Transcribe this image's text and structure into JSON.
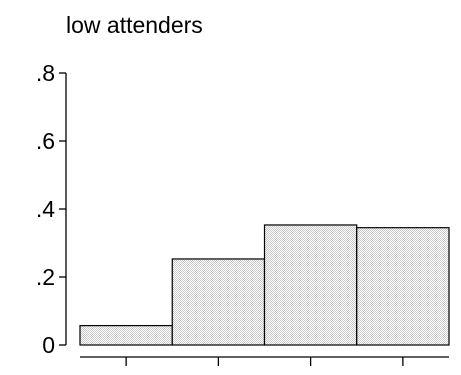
{
  "chart_data": {
    "type": "bar",
    "title": "low attenders",
    "xlabel": "",
    "ylabel": "",
    "categories": [
      "",
      "",
      "",
      ""
    ],
    "values": [
      0.057,
      0.253,
      0.353,
      0.345
    ],
    "ylim": [
      0,
      0.8
    ],
    "yticks": [
      {
        "value": 0,
        "label": "0"
      },
      {
        "value": 0.2,
        "label": ".2"
      },
      {
        "value": 0.4,
        "label": ".4"
      },
      {
        "value": 0.6,
        "label": ".6"
      },
      {
        "value": 0.8,
        "label": ".8"
      }
    ],
    "grid": false,
    "legend": "none",
    "bar_fill": "#e4e4e4",
    "bar_stroke": "#000000"
  }
}
